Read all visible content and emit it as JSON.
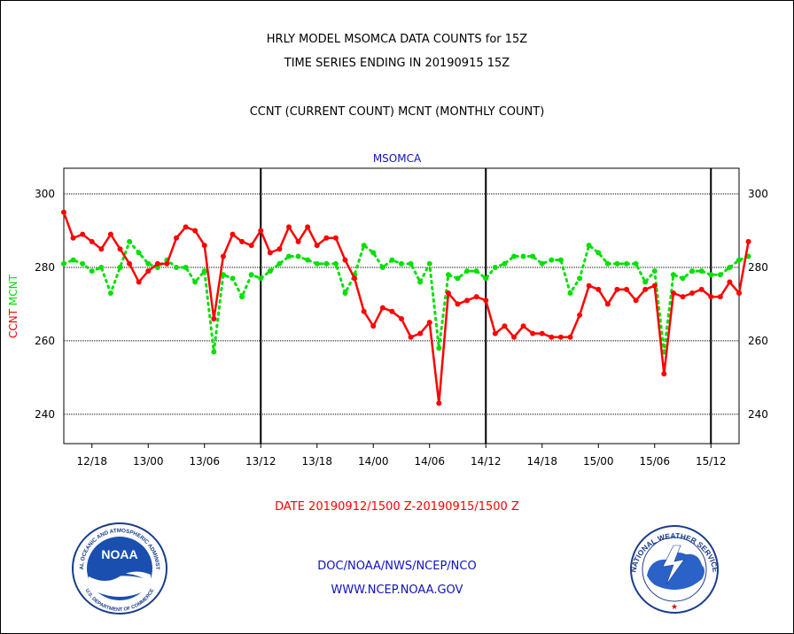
{
  "header": {
    "title_line1": "HRLY MODEL MSOMCA DATA COUNTS for 15Z",
    "title_line2": "TIME SERIES ENDING IN 20190915 15Z",
    "subtitle": "CCNT (CURRENT COUNT) MCNT (MONTHLY COUNT)",
    "station": "MSOMCA"
  },
  "footer": {
    "date_range": "DATE 20190912/1500 Z-20190915/1500 Z",
    "org": "DOC/NOAA/NWS/NCEP/NCO",
    "website": "WWW.NCEP.NOAA.GOV"
  },
  "logos": {
    "noaa_center": "NOAA",
    "noaa_ring": "NATIONAL OCEANIC AND ATMOSPHERIC ADMINISTRATION",
    "noaa_ring_bottom": "U.S. DEPARTMENT OF COMMERCE",
    "nws_ring": "NATIONAL WEATHER SERVICE"
  },
  "chart_data": {
    "type": "line",
    "ylabel_ccnt": "CCNT",
    "ylabel_mcnt": "MCNT",
    "ylim": [
      232,
      307
    ],
    "y_ticks": [
      240,
      260,
      280,
      300
    ],
    "y_tick_labels": [
      "240",
      "260",
      "280",
      "300"
    ],
    "x_range_hours": [
      0,
      72
    ],
    "x_tick_labels": [
      "12/18",
      "13/00",
      "13/06",
      "13/12",
      "13/18",
      "14/00",
      "14/06",
      "14/12",
      "14/18",
      "15/00",
      "15/06",
      "15/12"
    ],
    "day_boundaries": [
      "13/12",
      "14/12",
      "15/12"
    ],
    "grid": "horizontal dotted",
    "colors": {
      "ccnt": "#ff0000",
      "mcnt": "#00e000",
      "axis_text_blue": "#1010c0"
    },
    "series": [
      {
        "name": "CCNT",
        "values": [
          295,
          288,
          289,
          287,
          285,
          289,
          285,
          281,
          276,
          279,
          281,
          281,
          288,
          291,
          290,
          286,
          266,
          283,
          289,
          287,
          286,
          290,
          284,
          285,
          291,
          287,
          291,
          286,
          288,
          288,
          282,
          277,
          268,
          264,
          269,
          268,
          266,
          261,
          262,
          265,
          243,
          273,
          270,
          271,
          272,
          271,
          262,
          264,
          261,
          264,
          262,
          262,
          261,
          261,
          261,
          267,
          275,
          274,
          270,
          274,
          274,
          271,
          274,
          275,
          251,
          273,
          272,
          273,
          274,
          272,
          272,
          276,
          273,
          287
        ]
      },
      {
        "name": "MCNT",
        "values": [
          281,
          282,
          281,
          279,
          280,
          273,
          280,
          287,
          284,
          281,
          280,
          282,
          280,
          280,
          276,
          279,
          257,
          278,
          277,
          272,
          278,
          277,
          279,
          281,
          283,
          283,
          282,
          281,
          281,
          281,
          273,
          278,
          286,
          284,
          280,
          282,
          281,
          281,
          276,
          281,
          258,
          278,
          277,
          279,
          279,
          277,
          280,
          281,
          283,
          283,
          283,
          281,
          282,
          282,
          273,
          277,
          286,
          284,
          281,
          281,
          281,
          281,
          276,
          279,
          257,
          278,
          277,
          279,
          279,
          278,
          278,
          280,
          282,
          283
        ]
      }
    ]
  }
}
